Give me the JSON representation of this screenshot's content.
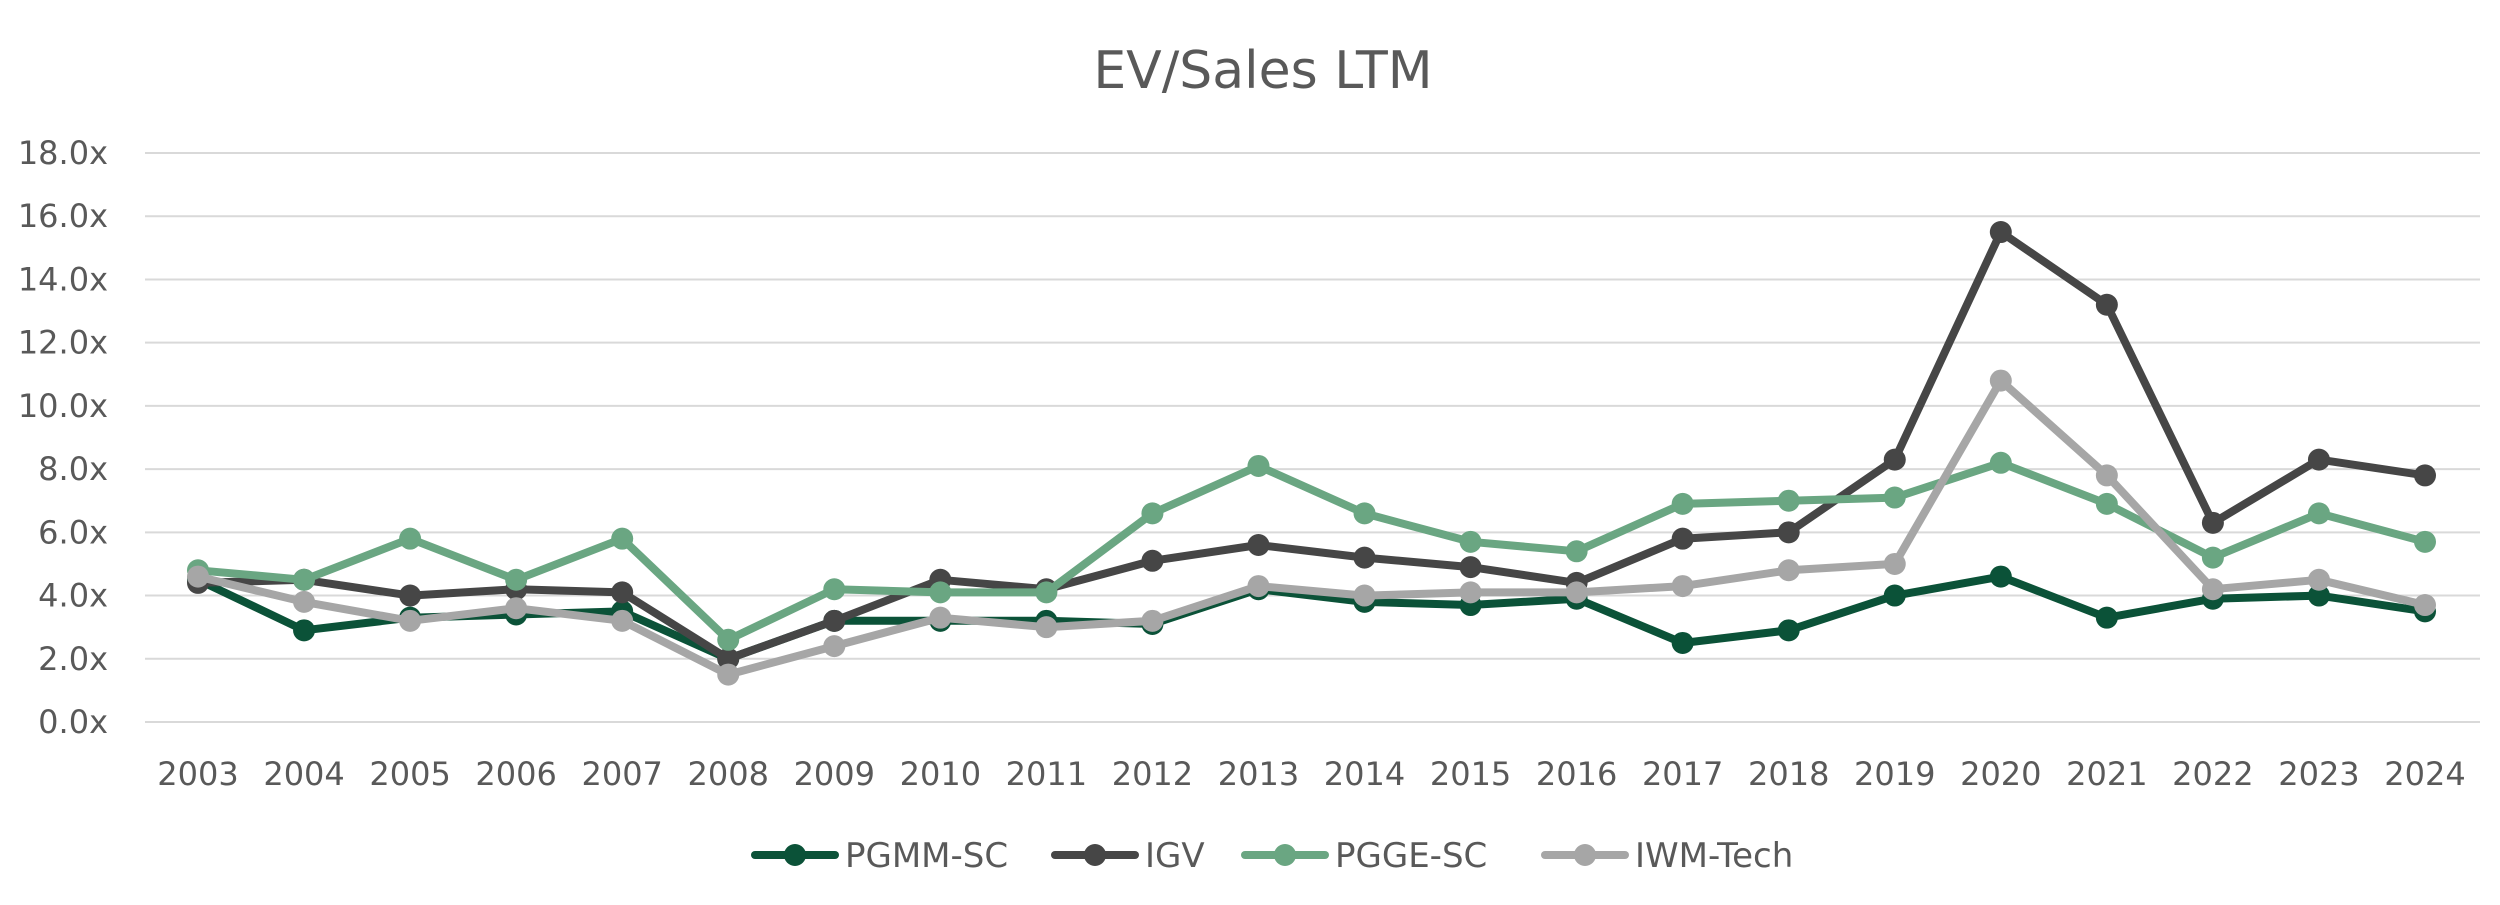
{
  "chart_data": {
    "type": "line",
    "title": "EV/Sales LTM",
    "xlabel": "",
    "ylabel": "",
    "ylim": [
      0,
      18
    ],
    "y_ticks": [
      "0.0x",
      "2.0x",
      "4.0x",
      "6.0x",
      "8.0x",
      "10.0x",
      "12.0x",
      "14.0x",
      "16.0x",
      "18.0x"
    ],
    "grid": true,
    "legend_position": "bottom",
    "categories": [
      "2003",
      "2004",
      "2005",
      "2006",
      "2007",
      "2008",
      "2009",
      "2010",
      "2011",
      "2012",
      "2013",
      "2014",
      "2015",
      "2016",
      "2017",
      "2018",
      "2019",
      "2020",
      "2021",
      "2022",
      "2023",
      "2024"
    ],
    "series": [
      {
        "name": "PGMM-SC",
        "color": "#0b5238",
        "values": [
          4.5,
          2.9,
          3.3,
          3.4,
          3.5,
          2.0,
          3.2,
          3.2,
          3.2,
          3.1,
          4.2,
          3.8,
          3.7,
          3.9,
          2.5,
          2.9,
          4.0,
          4.6,
          3.3,
          3.9,
          4.0,
          3.5
        ]
      },
      {
        "name": "IGV",
        "color": "#464646",
        "values": [
          4.4,
          4.5,
          4.0,
          4.2,
          4.1,
          2.0,
          3.2,
          4.5,
          4.2,
          5.1,
          5.6,
          5.2,
          4.9,
          4.4,
          5.8,
          6.0,
          8.3,
          15.5,
          13.2,
          6.3,
          8.3,
          7.8
        ]
      },
      {
        "name": "PGGE-SC",
        "color": "#6aa682",
        "values": [
          4.8,
          4.5,
          5.8,
          4.5,
          5.8,
          2.6,
          4.2,
          4.1,
          4.1,
          6.6,
          8.1,
          6.6,
          5.7,
          5.4,
          6.9,
          7.0,
          7.1,
          8.2,
          6.9,
          5.2,
          6.6,
          5.7
        ]
      },
      {
        "name": "IWM-Tech",
        "color": "#a6a6a6",
        "values": [
          4.6,
          3.8,
          3.2,
          3.6,
          3.2,
          1.5,
          2.4,
          3.3,
          3.0,
          3.2,
          4.3,
          4.0,
          4.1,
          4.1,
          4.3,
          4.8,
          5.0,
          10.8,
          7.8,
          4.2,
          4.5,
          3.7
        ]
      }
    ]
  }
}
